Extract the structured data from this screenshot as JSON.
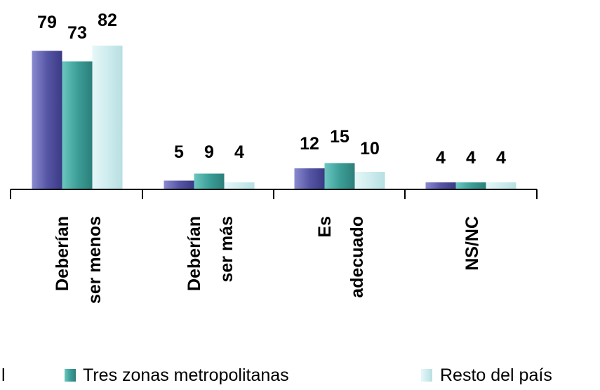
{
  "chart_data": {
    "type": "bar",
    "categories": [
      [
        "Deberían",
        "ser menos"
      ],
      [
        "Deberían",
        "ser más"
      ],
      [
        "Es",
        "adecuado"
      ],
      [
        "NS/NC"
      ]
    ],
    "series": [
      {
        "values": [
          79,
          5,
          12,
          4
        ],
        "color": "#5b5ba8",
        "legend": "l"
      },
      {
        "name": "Tres zonas metropolitanas",
        "values": [
          73,
          9,
          15,
          4
        ],
        "color": "#3b9f98",
        "legend": "Tres zonas metropolitanas"
      },
      {
        "name": "Resto del país",
        "values": [
          82,
          4,
          10,
          4
        ],
        "color": "#cfecee",
        "legend": "Resto del país"
      }
    ],
    "ylim": [
      0,
      90
    ],
    "grid": false,
    "legend_position": "bottom",
    "title": "",
    "xlabel": "",
    "ylabel": ""
  }
}
